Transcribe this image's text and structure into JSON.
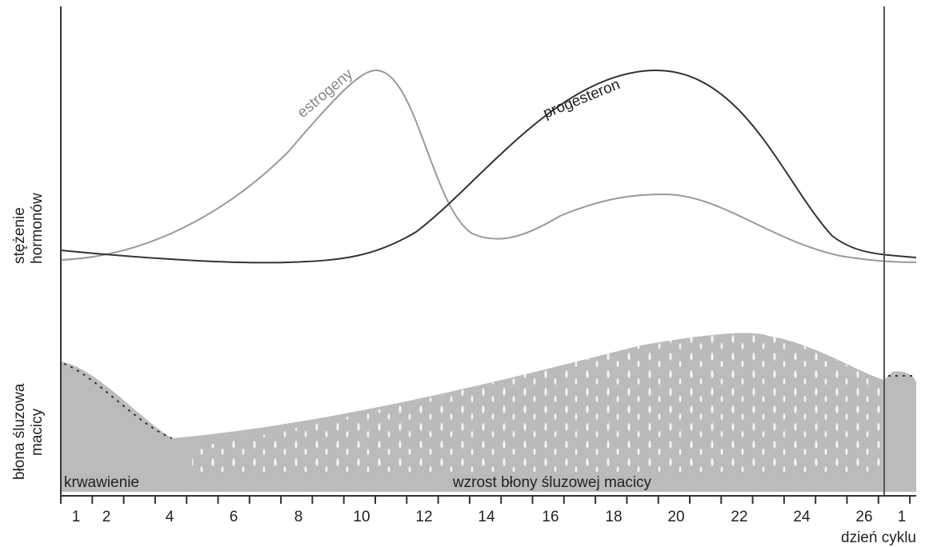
{
  "hormones": {
    "axis_label_line1": "stężenie",
    "axis_label_line2": "hormonów",
    "estrogen": "estrogeny",
    "progesterone": "progesteron"
  },
  "endometrium": {
    "axis_label_line1": "błona śluzowa",
    "axis_label_line2": "macicy",
    "phase_left": "krwawienie",
    "phase_main": "wzrost błony śluzowej macicy"
  },
  "x_axis": {
    "labels": [
      "1",
      "2",
      "4",
      "6",
      "8",
      "10",
      "12",
      "14",
      "16",
      "18",
      "20",
      "22",
      "24",
      "26",
      "1"
    ],
    "title": "dzień cyklu"
  }
}
